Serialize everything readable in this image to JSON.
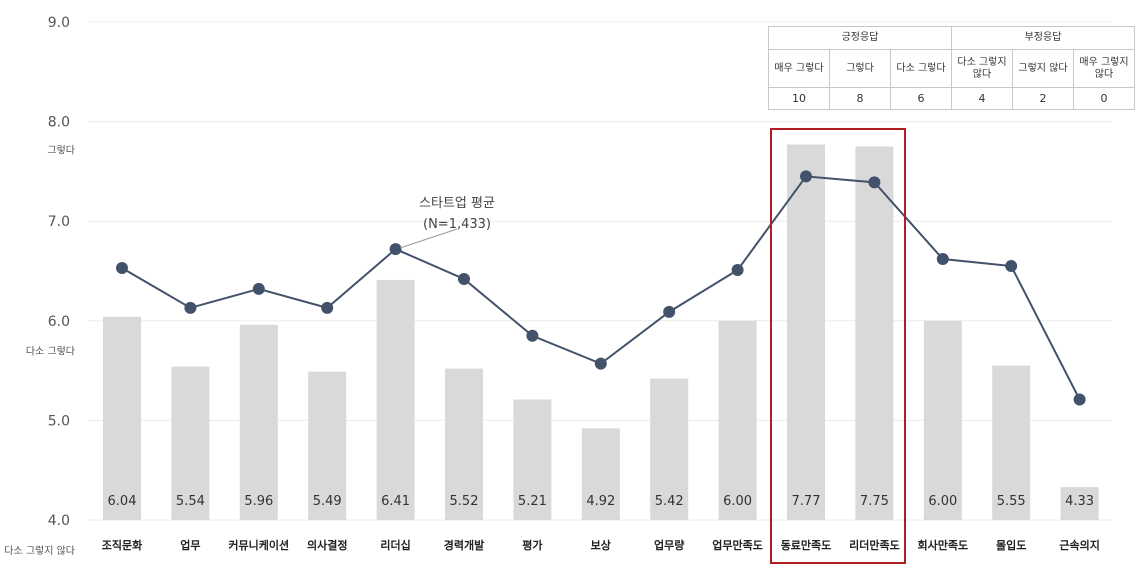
{
  "chart_data": {
    "type": "bar+line",
    "ylim": [
      4.0,
      9.0
    ],
    "y_ticks": [
      "9.0",
      "8.0",
      "7.0",
      "6.0",
      "5.0",
      "4.0"
    ],
    "y_tick_values": [
      9.0,
      8.0,
      7.0,
      6.0,
      5.0,
      4.0
    ],
    "verbal_labels": [
      {
        "text": "그렇다",
        "value": 7.72
      },
      {
        "text": "다소 그렇다",
        "value": 5.7
      },
      {
        "text": "다소 그렇지 않다",
        "value": 3.7
      }
    ],
    "categories": [
      "조직문화",
      "업무",
      "커뮤니케이션",
      "의사결정",
      "리더십",
      "경력개발",
      "평가",
      "보상",
      "업무량",
      "업무만족도",
      "동료만족도",
      "리더만족도",
      "회사만족도",
      "몰입도",
      "근속의지"
    ],
    "bar_labels": [
      "6.04",
      "5.54",
      "5.96",
      "5.49",
      "6.41",
      "5.52",
      "5.21",
      "4.92",
      "5.42",
      "6.00",
      "7.77",
      "7.75",
      "6.00",
      "5.55",
      "4.33"
    ],
    "bar_values": [
      6.04,
      5.54,
      5.96,
      5.49,
      6.41,
      5.52,
      5.21,
      4.92,
      5.42,
      6.0,
      7.77,
      7.75,
      6.0,
      5.55,
      4.33
    ],
    "line_values": [
      6.53,
      6.13,
      6.32,
      6.13,
      6.72,
      6.42,
      5.85,
      5.57,
      6.09,
      6.51,
      7.45,
      7.39,
      6.62,
      6.55,
      5.21
    ],
    "line_annotation": [
      "스타트업 평균",
      "(N=1,433)"
    ],
    "highlight_categories": [
      "동료만족도",
      "리더만족도"
    ],
    "colors": {
      "bar": "#d9d9d9",
      "line": "#43526b",
      "highlight": "#b01e23",
      "grid": "#ececec"
    },
    "legend": {
      "groups": [
        "긍정응답",
        "부정응답"
      ],
      "labels": [
        "매우 그렇다",
        "그렇다",
        "다소 그렇다",
        "다소 그렇지 않다",
        "그렇지 않다",
        "매우 그렇지 않다"
      ],
      "values": [
        "10",
        "8",
        "6",
        "4",
        "2",
        "0"
      ]
    }
  }
}
